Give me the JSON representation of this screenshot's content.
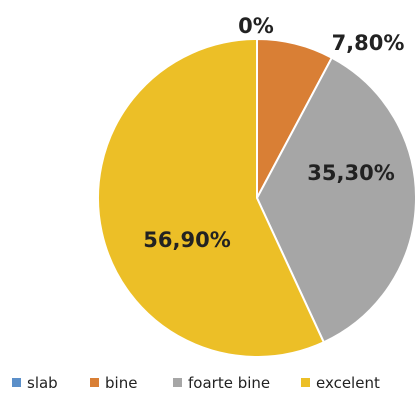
{
  "chart_data": {
    "type": "pie",
    "categories": [
      "slab",
      "bine",
      "foarte bine",
      "excelent"
    ],
    "values": [
      0,
      7.8,
      35.3,
      56.9
    ],
    "labels": [
      "0%",
      "7,80%",
      "35,30%",
      "56,90%"
    ],
    "colors": [
      "#5b8fc9",
      "#d97f35",
      "#a6a6a6",
      "#ecbf27"
    ],
    "start": "top, clockwise",
    "legend": "bottom"
  }
}
